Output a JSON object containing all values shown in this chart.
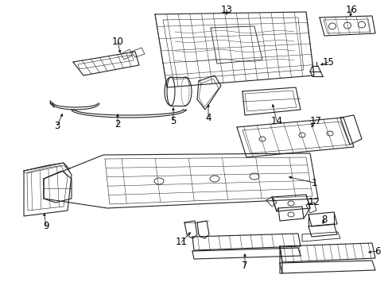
{
  "bg_color": "#ffffff",
  "line_color": "#222222",
  "lw": 0.8,
  "fig_width": 4.89,
  "fig_height": 3.6,
  "dpi": 100,
  "label_fontsize": 8.5
}
